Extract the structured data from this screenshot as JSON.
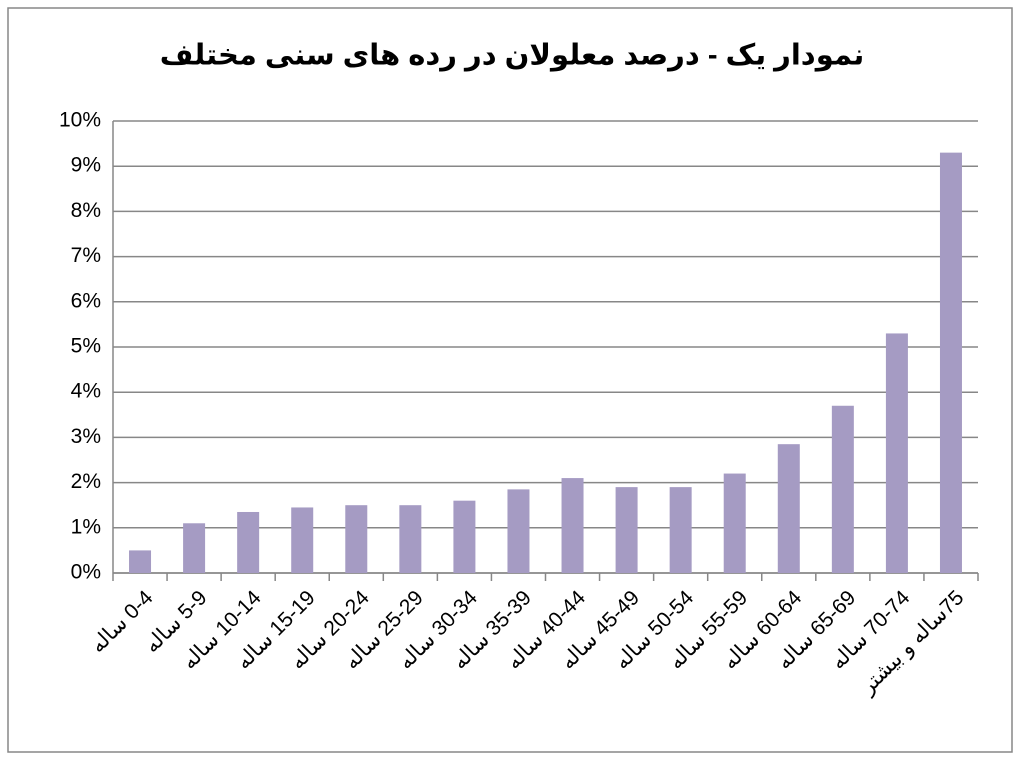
{
  "chart_data": {
    "type": "bar",
    "title": "نمودار یک - درصد معلولان در رده های سنی مختلف",
    "categories": [
      "0-4 ساله",
      "5-9 ساله",
      "10-14 ساله",
      "15-19 ساله",
      "20-24 ساله",
      "25-29 ساله",
      "30-34 ساله",
      "35-39 ساله",
      "40-44 ساله",
      "45-49 ساله",
      "50-54 ساله",
      "55-59 ساله",
      "60-64 ساله",
      "65-69 ساله",
      "70-74 ساله",
      "75ساله و بیشتر"
    ],
    "values": [
      0.5,
      1.1,
      1.35,
      1.45,
      1.5,
      1.5,
      1.6,
      1.85,
      2.1,
      1.9,
      1.9,
      2.2,
      2.85,
      3.7,
      5.3,
      9.3
    ],
    "color": "#a59bc3",
    "ylim": [
      0,
      10
    ],
    "yticks": [
      {
        "value": 0,
        "label": "0%"
      },
      {
        "value": 1,
        "label": "1%"
      },
      {
        "value": 2,
        "label": "2%"
      },
      {
        "value": 3,
        "label": "3%"
      },
      {
        "value": 4,
        "label": "4%"
      },
      {
        "value": 5,
        "label": "5%"
      },
      {
        "value": 6,
        "label": "6%"
      },
      {
        "value": 7,
        "label": "7%"
      },
      {
        "value": 8,
        "label": "8%"
      },
      {
        "value": 9,
        "label": "9%"
      },
      {
        "value": 10,
        "label": "10%"
      }
    ],
    "grid": true
  }
}
